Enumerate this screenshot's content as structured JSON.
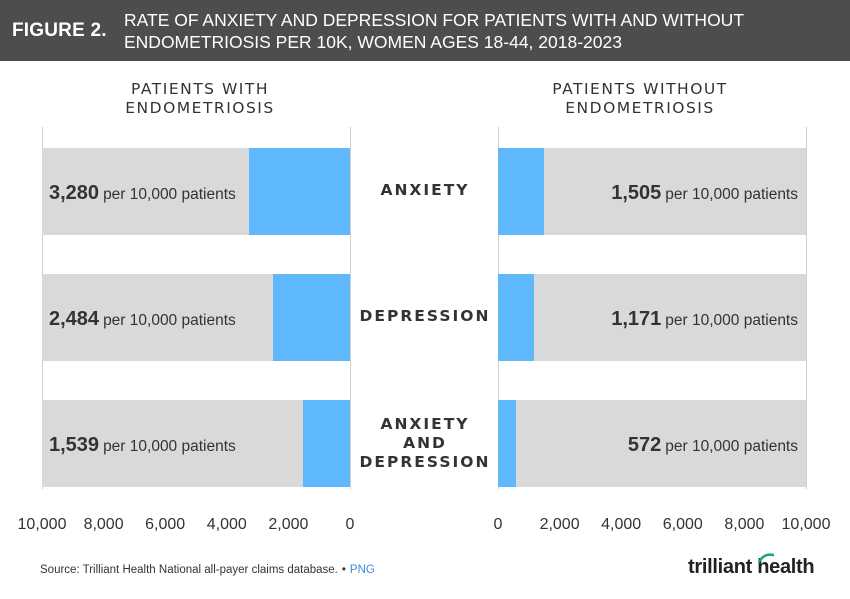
{
  "header": {
    "figure_label": "FIGURE 2.",
    "title": "RATE OF ANXIETY AND DEPRESSION FOR PATIENTS WITH AND WITHOUT ENDOMETRIOSIS PER 10K, WOMEN AGES 18-44, 2018-2023"
  },
  "colors": {
    "header_bg": "#4d4d4f",
    "bar_value": "#5fb8fb",
    "bar_background": "#d9d9d9",
    "accent_logo": "#1aa37a"
  },
  "chart_data": {
    "type": "bar",
    "orientation": "horizontal",
    "unit_suffix": "per 10,000 patients",
    "categories": [
      "ANXIETY",
      "DEPRESSION",
      "ANXIETY AND DEPRESSION"
    ],
    "xlim": [
      0,
      10000
    ],
    "ticks": [
      "0",
      "2,000",
      "4,000",
      "6,000",
      "8,000",
      "10,000"
    ],
    "left_ticks": [
      "10,000",
      "8,000",
      "6,000",
      "4,000",
      "2,000",
      "0"
    ],
    "series": [
      {
        "name": "PATIENTS WITH ENDOMETRIOSIS",
        "values": [
          3280,
          2484,
          1539
        ],
        "labels": [
          "3,280",
          "2,484",
          "1,539"
        ],
        "direction": "reversed"
      },
      {
        "name": "PATIENTS WITHOUT ENDOMETRIOSIS",
        "values": [
          1505,
          1171,
          572
        ],
        "labels": [
          "1,505",
          "1,171",
          "572"
        ],
        "direction": "normal"
      }
    ]
  },
  "footer": {
    "source": "Source: Trilliant Health National all-payer claims database.",
    "separator": "•",
    "png_link": "PNG",
    "logo_text": "trilliant health"
  }
}
